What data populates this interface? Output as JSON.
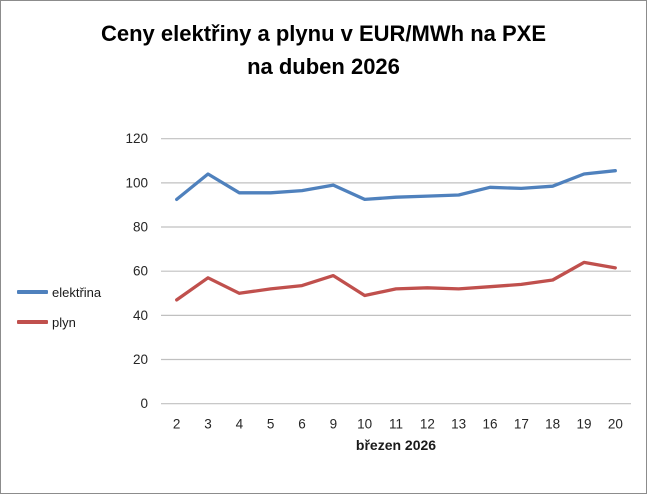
{
  "window": {
    "background": "#ffffff",
    "border_color": "#8c8c8c"
  },
  "chart_data": {
    "type": "line",
    "title": "Ceny elektřiny a plynu v EUR/MWh na PXE na duben 2026",
    "title_lines": [
      "Ceny elektřiny a plynu v EUR/MWh na PXE",
      "na duben 2026"
    ],
    "xlabel": "březen 2026",
    "ylabel": "",
    "units": "EUR/MWh",
    "categories": [
      "2",
      "3",
      "4",
      "5",
      "6",
      "9",
      "10",
      "11",
      "12",
      "13",
      "16",
      "17",
      "18",
      "19",
      "20"
    ],
    "series": [
      {
        "name": "elektřina",
        "color": "#4F81BD",
        "values": [
          92.5,
          104,
          95.5,
          95.5,
          96.5,
          99,
          92.5,
          93.5,
          94,
          94.5,
          98,
          97.5,
          98.5,
          104,
          105.5
        ]
      },
      {
        "name": "plyn",
        "color": "#C0504D",
        "values": [
          47,
          57,
          50,
          52,
          53.5,
          58,
          49,
          52,
          52.5,
          52,
          53,
          54,
          56,
          64,
          61.5
        ]
      }
    ],
    "ylim": [
      0,
      120
    ],
    "ytick_step": 20,
    "yticks": [
      "0",
      "20",
      "40",
      "60",
      "80",
      "100",
      "120"
    ],
    "grid": "horizontal",
    "gridline_color": "#c0c0c0",
    "tick_label_color": "#262626",
    "legend_position": "left"
  }
}
